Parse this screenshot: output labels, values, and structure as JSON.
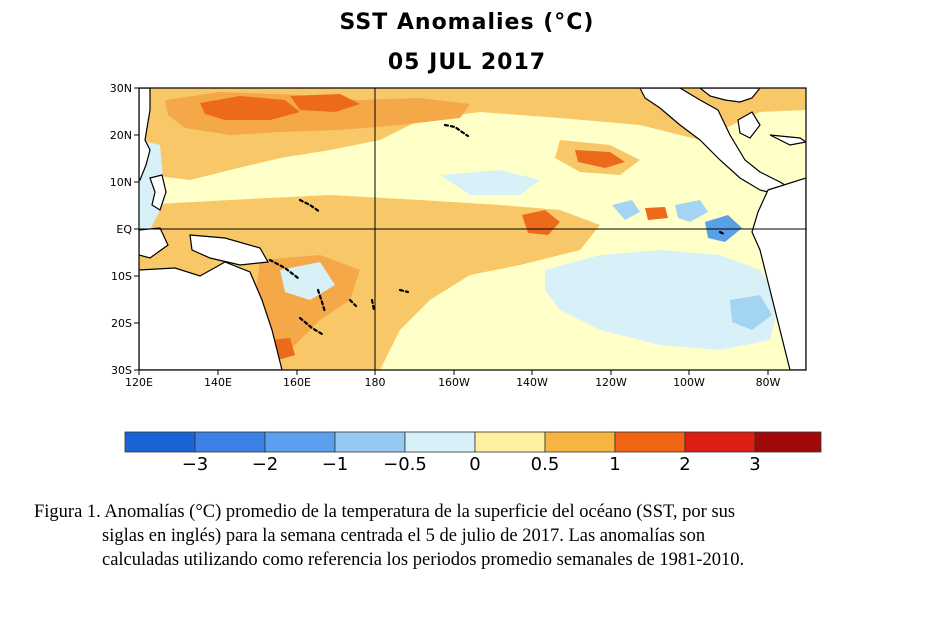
{
  "title": "SST Anomalies (°C)",
  "date": "05 JUL 2017",
  "map": {
    "lat_labels": [
      "30N",
      "20N",
      "10N",
      "EQ",
      "10S",
      "20S",
      "30S"
    ],
    "lon_labels": [
      "120E",
      "140E",
      "160E",
      "180",
      "160W",
      "140W",
      "120W",
      "100W",
      "80W"
    ],
    "colors": {
      "ocean_base": "#ffffc8",
      "light_blue": "#d8f0f8",
      "blue": "#a4d4f4",
      "dark_blue": "#5aa0e6",
      "light_orange": "#f8c868",
      "orange": "#f4a848",
      "dark_orange": "#ec6a1a",
      "land": "#ffffff"
    }
  },
  "colorbar": {
    "labels": [
      "−3",
      "−2",
      "−1",
      "−0.5",
      "0",
      "0.5",
      "1",
      "2",
      "3"
    ],
    "colors": [
      "#1a64d6",
      "#3c82e6",
      "#5aa0ee",
      "#96c8f4",
      "#d8f0f8",
      "#fff0a0",
      "#f8b440",
      "#f06414",
      "#dc1e14",
      "#a00a0a"
    ]
  },
  "caption": {
    "line1": "Figura 1. Anomalías (°C) promedio de la temperatura de la superficie del océano (SST, por sus",
    "line2": "siglas en inglés) para la semana centrada el 5 de julio de 2017. Las anomalías son",
    "line3": "calculadas utilizando como referencia los periodos promedio semanales de 1981-2010."
  }
}
